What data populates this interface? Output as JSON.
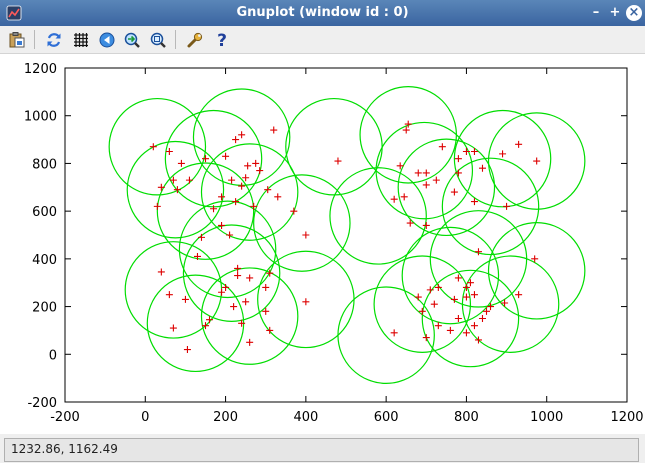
{
  "window": {
    "title": "Gnuplot (window id : 0)",
    "minimize_label": "–",
    "maximize_label": "+",
    "close_label": "×"
  },
  "toolbar": {
    "buttons": [
      {
        "name": "copy-to-clipboard",
        "icon": "clipboard-icon"
      },
      {
        "name": "replot",
        "icon": "refresh-icon"
      },
      {
        "name": "toggle-grid",
        "icon": "grid-icon"
      },
      {
        "name": "previous-zoom",
        "icon": "zoom-back-icon"
      },
      {
        "name": "next-zoom",
        "icon": "zoom-forward-icon"
      },
      {
        "name": "autoscale",
        "icon": "zoom-fit-icon"
      },
      {
        "name": "options",
        "icon": "wrench-icon"
      },
      {
        "name": "help",
        "icon": "help-icon"
      }
    ]
  },
  "status": {
    "coordinates": "1232.86,  1162.49"
  },
  "colors": {
    "circle": "#00dd00",
    "point": "#dd0000",
    "titlebar": "#4a76ac"
  },
  "chart_data": {
    "type": "scatter",
    "title": "",
    "xlabel": "",
    "ylabel": "",
    "xlim": [
      -200,
      1200
    ],
    "ylim": [
      -200,
      1200
    ],
    "xticks": [
      "-200",
      "0",
      "200",
      "400",
      "600",
      "800",
      "1000",
      "1200"
    ],
    "yticks": [
      "-200",
      "0",
      "200",
      "400",
      "600",
      "800",
      "1000",
      "1200"
    ],
    "circle_radius": 120,
    "circles": [
      [
        30,
        870
      ],
      [
        240,
        910
      ],
      [
        75,
        690
      ],
      [
        170,
        820
      ],
      [
        260,
        680
      ],
      [
        150,
        600
      ],
      [
        205,
        440
      ],
      [
        390,
        550
      ],
      [
        470,
        870
      ],
      [
        70,
        270
      ],
      [
        215,
        340
      ],
      [
        125,
        130
      ],
      [
        260,
        160
      ],
      [
        400,
        230
      ],
      [
        655,
        920
      ],
      [
        695,
        770
      ],
      [
        750,
        700
      ],
      [
        580,
        580
      ],
      [
        890,
        820
      ],
      [
        975,
        810
      ],
      [
        860,
        620
      ],
      [
        830,
        400
      ],
      [
        975,
        350
      ],
      [
        760,
        330
      ],
      [
        690,
        210
      ],
      [
        600,
        80
      ],
      [
        910,
        210
      ],
      [
        810,
        150
      ]
    ],
    "points": [
      [
        20,
        870
      ],
      [
        60,
        850
      ],
      [
        90,
        800
      ],
      [
        150,
        820
      ],
      [
        110,
        730
      ],
      [
        70,
        730
      ],
      [
        40,
        700
      ],
      [
        80,
        690
      ],
      [
        30,
        620
      ],
      [
        200,
        830
      ],
      [
        225,
        900
      ],
      [
        240,
        920
      ],
      [
        255,
        790
      ],
      [
        275,
        800
      ],
      [
        285,
        770
      ],
      [
        250,
        740
      ],
      [
        215,
        730
      ],
      [
        240,
        705
      ],
      [
        190,
        660
      ],
      [
        225,
        640
      ],
      [
        270,
        620
      ],
      [
        305,
        690
      ],
      [
        330,
        660
      ],
      [
        320,
        940
      ],
      [
        480,
        810
      ],
      [
        370,
        600
      ],
      [
        400,
        500
      ],
      [
        170,
        610
      ],
      [
        190,
        540
      ],
      [
        140,
        490
      ],
      [
        130,
        410
      ],
      [
        210,
        500
      ],
      [
        230,
        360
      ],
      [
        230,
        330
      ],
      [
        260,
        320
      ],
      [
        310,
        340
      ],
      [
        200,
        280
      ],
      [
        190,
        260
      ],
      [
        300,
        280
      ],
      [
        40,
        345
      ],
      [
        60,
        250
      ],
      [
        100,
        230
      ],
      [
        70,
        110
      ],
      [
        160,
        145
      ],
      [
        220,
        200
      ],
      [
        250,
        220
      ],
      [
        150,
        120
      ],
      [
        105,
        20
      ],
      [
        240,
        130
      ],
      [
        260,
        50
      ],
      [
        300,
        180
      ],
      [
        310,
        100
      ],
      [
        400,
        220
      ],
      [
        655,
        965
      ],
      [
        650,
        940
      ],
      [
        680,
        760
      ],
      [
        700,
        760
      ],
      [
        725,
        730
      ],
      [
        635,
        790
      ],
      [
        700,
        710
      ],
      [
        660,
        550
      ],
      [
        700,
        540
      ],
      [
        620,
        650
      ],
      [
        645,
        660
      ],
      [
        740,
        870
      ],
      [
        780,
        760
      ],
      [
        780,
        820
      ],
      [
        800,
        850
      ],
      [
        820,
        850
      ],
      [
        840,
        780
      ],
      [
        890,
        840
      ],
      [
        930,
        880
      ],
      [
        975,
        810
      ],
      [
        900,
        620
      ],
      [
        820,
        640
      ],
      [
        770,
        680
      ],
      [
        830,
        430
      ],
      [
        970,
        400
      ],
      [
        780,
        320
      ],
      [
        810,
        300
      ],
      [
        820,
        250
      ],
      [
        800,
        240
      ],
      [
        770,
        230
      ],
      [
        800,
        280
      ],
      [
        860,
        200
      ],
      [
        930,
        250
      ],
      [
        710,
        270
      ],
      [
        680,
        240
      ],
      [
        720,
        210
      ],
      [
        690,
        180
      ],
      [
        730,
        120
      ],
      [
        620,
        90
      ],
      [
        700,
        70
      ],
      [
        780,
        150
      ],
      [
        820,
        120
      ],
      [
        850,
        180
      ],
      [
        800,
        90
      ],
      [
        840,
        150
      ],
      [
        830,
        60
      ],
      [
        895,
        215
      ],
      [
        760,
        100
      ],
      [
        730,
        280
      ]
    ]
  }
}
